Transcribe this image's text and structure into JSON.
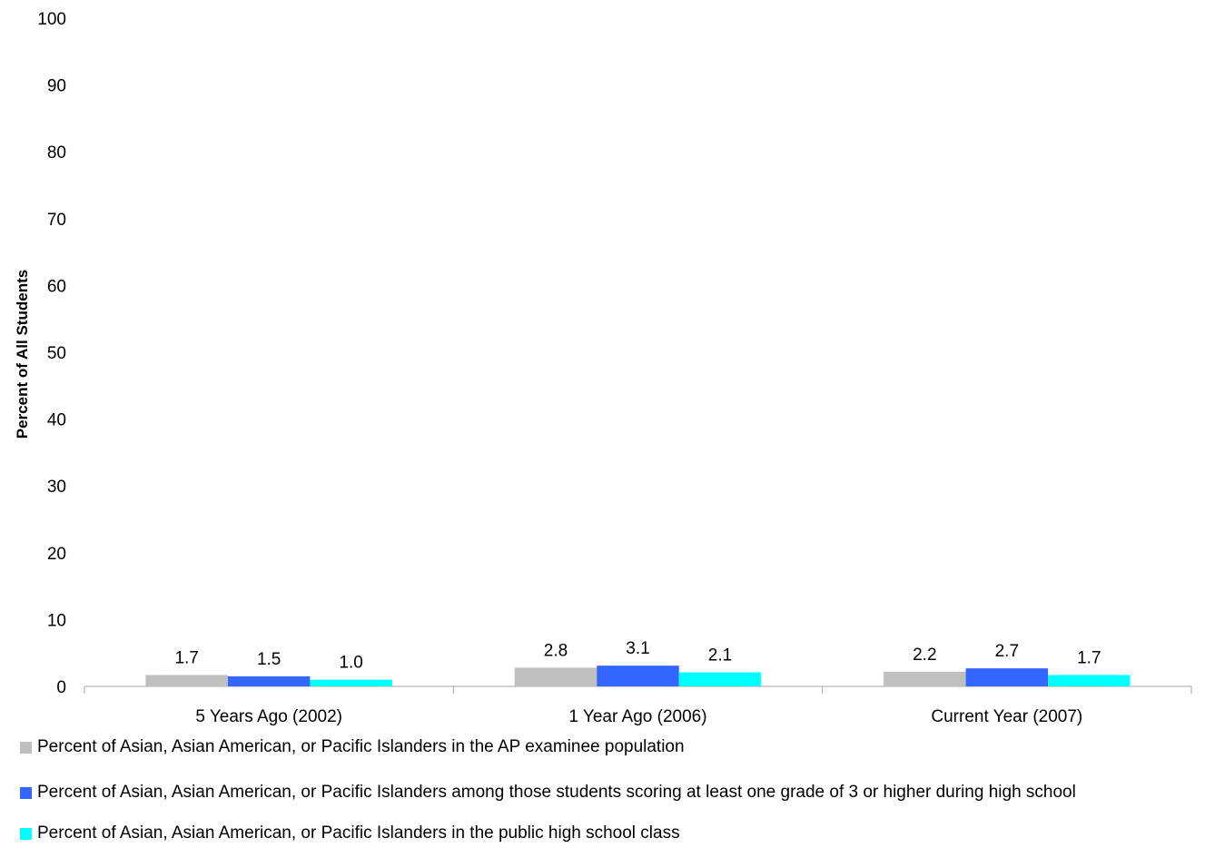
{
  "chart_data": {
    "type": "bar",
    "title": "",
    "xlabel": "",
    "ylabel": "Percent of All Students",
    "ylim": [
      0,
      100
    ],
    "yticks": [
      0,
      10,
      20,
      30,
      40,
      50,
      60,
      70,
      80,
      90,
      100
    ],
    "categories": [
      "5 Years Ago (2002)",
      "1 Year Ago (2006)",
      "Current Year (2007)"
    ],
    "series": [
      {
        "name": "Percent of Asian, Asian American, or Pacific Islanders in the AP examinee population",
        "color": "#bfbfbf",
        "values": [
          1.7,
          2.8,
          2.2
        ],
        "labels": [
          "1.7",
          "2.8",
          "2.2"
        ]
      },
      {
        "name": "Percent of Asian, Asian American, or Pacific Islanders among those students scoring at least one grade of 3 or higher during high school",
        "color": "#3366ff",
        "values": [
          1.5,
          3.1,
          2.7
        ],
        "labels": [
          "1.5",
          "3.1",
          "2.7"
        ]
      },
      {
        "name": "Percent of Asian, Asian American, or Pacific Islanders in the public high school class",
        "color": "#00ffff",
        "values": [
          1.0,
          2.1,
          1.7
        ],
        "labels": [
          "1.0",
          "2.1",
          "1.7"
        ]
      }
    ],
    "grid": false,
    "legend_position": "bottom"
  }
}
